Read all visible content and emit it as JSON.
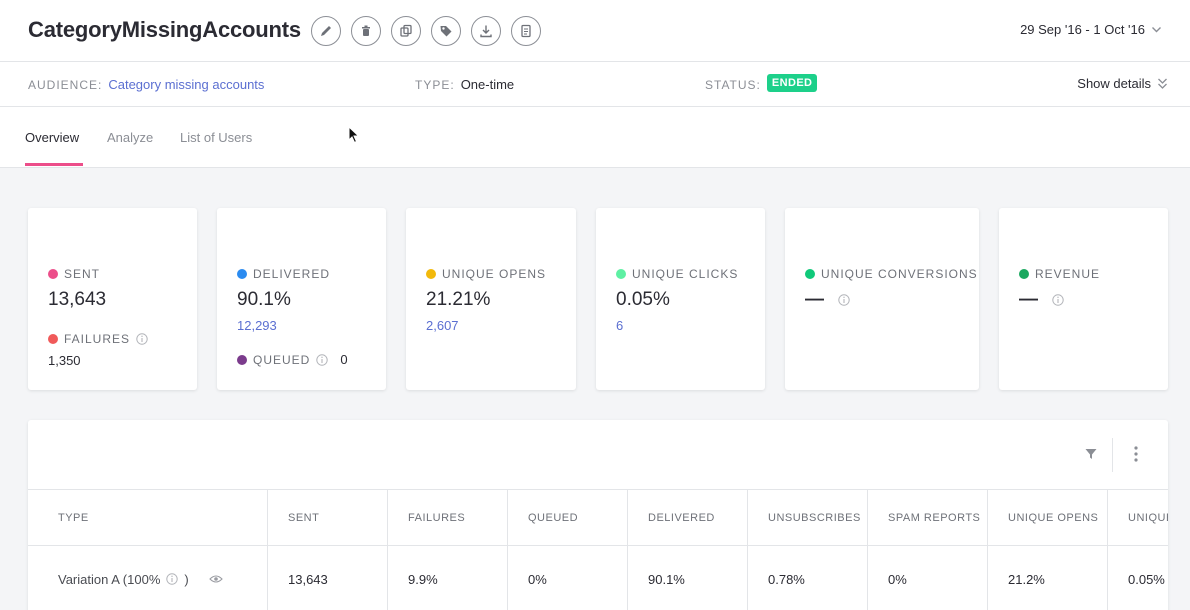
{
  "header": {
    "title": "CategoryMissingAccounts",
    "date_range": "29 Sep '16 - 1 Oct '16"
  },
  "meta": {
    "audience_label": "AUDIENCE:",
    "audience_value": "Category missing accounts",
    "type_label": "TYPE:",
    "type_value": "One-time",
    "status_label": "STATUS:",
    "status_value": "ENDED",
    "show_details": "Show details"
  },
  "tabs": [
    {
      "label": "Overview"
    },
    {
      "label": "Analyze"
    },
    {
      "label": "List of Users"
    }
  ],
  "cards": {
    "sent": {
      "label": "SENT",
      "value": "13,643",
      "color": "#ec4e8a",
      "sub_label": "FAILURES",
      "sub_value": "1,350",
      "sub_color": "#f05a5a"
    },
    "delivered": {
      "label": "DELIVERED",
      "value": "90.1%",
      "link": "12,293",
      "color": "#2b8bf0",
      "sub_label": "QUEUED",
      "sub_value": "0",
      "sub_color": "#7b3b8c"
    },
    "opens": {
      "label": "UNIQUE OPENS",
      "value": "21.21%",
      "link": "2,607",
      "color": "#f2b90c"
    },
    "clicks": {
      "label": "UNIQUE CLICKS",
      "value": "0.05%",
      "link": "6",
      "color": "#5ef0a3"
    },
    "conversions": {
      "label": "UNIQUE CONVERSIONS",
      "value": "—",
      "color": "#10c97a"
    },
    "revenue": {
      "label": "REVENUE",
      "value": "—",
      "color": "#1aa85f"
    }
  },
  "table": {
    "columns": [
      "TYPE",
      "SENT",
      "FAILURES",
      "QUEUED",
      "DELIVERED",
      "UNSUBSCRIBES",
      "SPAM REPORTS",
      "UNIQUE OPENS",
      "UNIQUE CLICKS"
    ],
    "rows": [
      {
        "type": "Variation A (100%",
        "type_suffix": ")",
        "cells": [
          "13,643",
          "9.9%",
          "0%",
          "90.1%",
          "0.78%",
          "0%",
          "21.2%",
          "0.05%"
        ]
      }
    ]
  }
}
